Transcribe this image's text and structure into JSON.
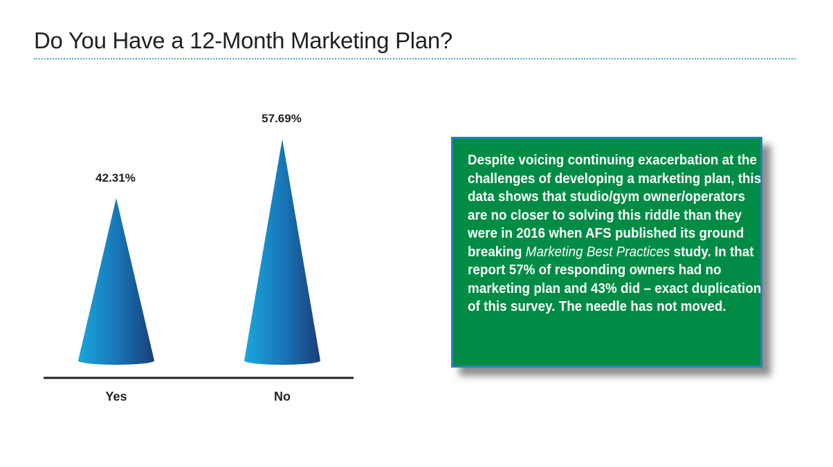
{
  "title": "Do You Have a 12-Month Marketing Plan?",
  "chart_data": {
    "type": "bar",
    "title": "Do You Have a 12-Month Marketing Plan?",
    "categories": [
      "Yes",
      "No"
    ],
    "values": [
      42.31,
      57.69
    ],
    "value_labels": [
      "42.31%",
      "57.69%"
    ],
    "xlabel": "",
    "ylabel": "",
    "unit": "%",
    "ylim": [
      0,
      62
    ],
    "grid": false,
    "legend": "none",
    "mark_shape": "cone",
    "colors": {
      "cone_light": "#1aa7de",
      "cone_dark": "#1b4f8a",
      "axis": "#231f20"
    }
  },
  "note": {
    "part1": "Despite voicing continuing exacerbation at the challenges of developing a marketing plan, this data shows that studio/gym owner/operators are no closer to solving this riddle than they were in 2016 when AFS published its ground breaking ",
    "italic": "Marketing Best Practices",
    "part2": " study. In that report 57% of responding owners had no marketing plan and 43% did – exact duplication of this survey. The needle has not moved.",
    "colors": {
      "background": "#008c45",
      "border": "#2a7fb8",
      "text": "#ffffff"
    }
  }
}
